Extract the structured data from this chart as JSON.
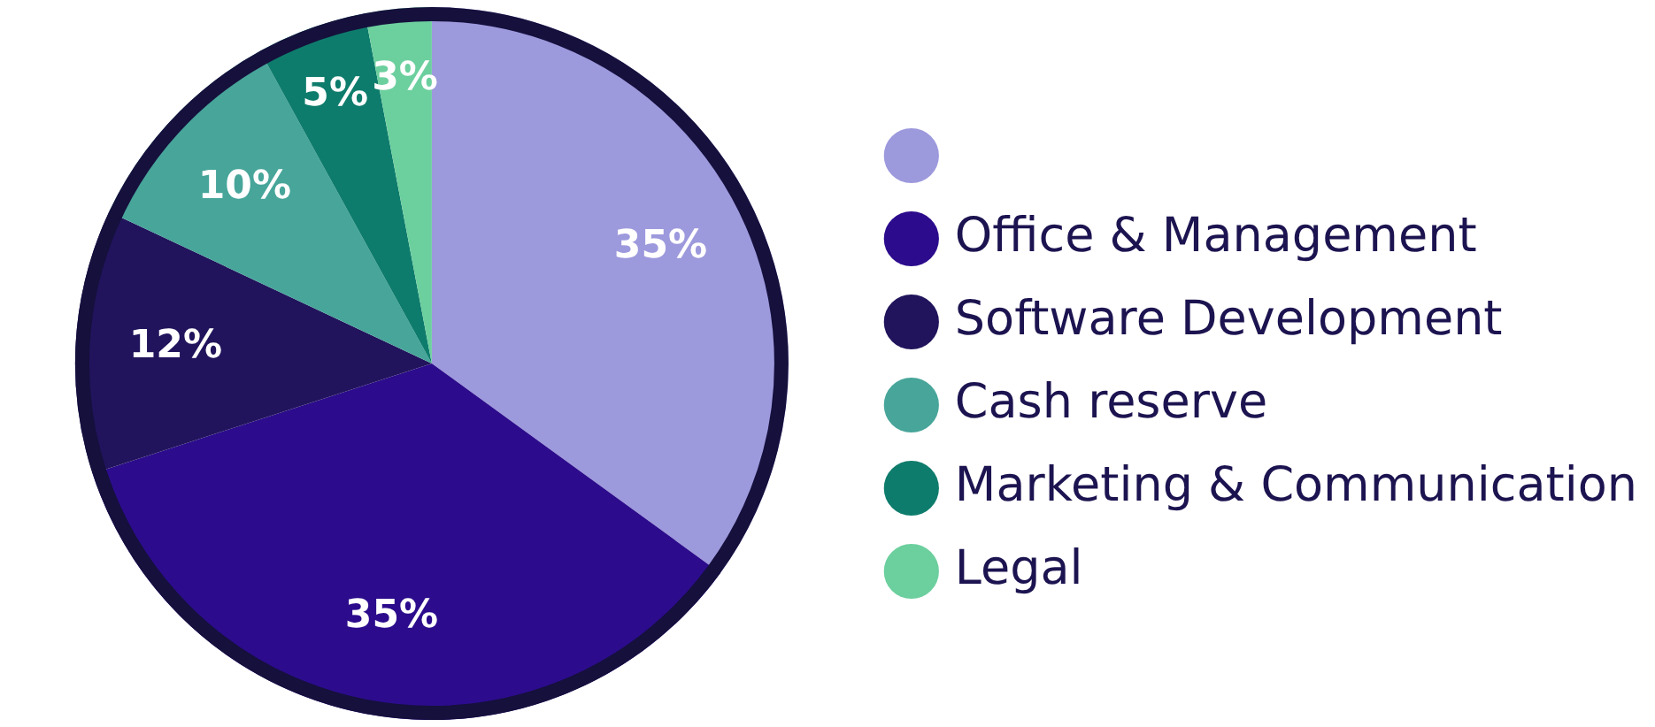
{
  "chart_data": {
    "type": "pie",
    "categories": [
      null,
      "Office & Management",
      "Software Development",
      "Cash reserve",
      "Marketing & Communication",
      "Legal"
    ],
    "values": [
      35,
      35,
      12,
      10,
      5,
      3
    ],
    "value_labels": [
      "35%",
      "35%",
      "12%",
      "10%",
      "5%",
      "3%"
    ],
    "colors": [
      "#9d99dd",
      "#2c0c8c",
      "#21145c",
      "#47a59a",
      "#0e7c6c",
      "#6ccf9e"
    ],
    "legend": "right"
  }
}
